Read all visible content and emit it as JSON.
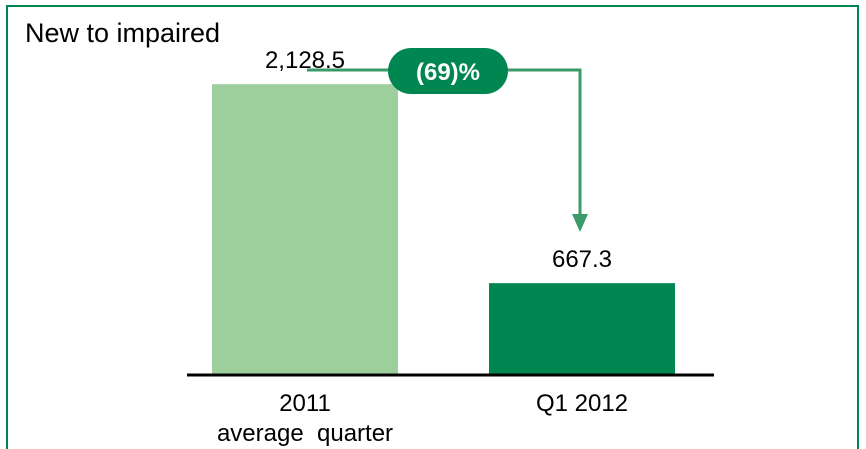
{
  "chart_data": {
    "type": "bar",
    "title": "New to impaired",
    "categories": [
      "2011\naverage  quarter",
      "Q1 2012"
    ],
    "values": [
      2128.5,
      667.3
    ],
    "value_labels": [
      "2,128.5",
      "667.3"
    ],
    "bar_colors": [
      "#9ccf9c",
      "#008751"
    ],
    "change_annotation": "(69)%",
    "annotation_color": "#008751",
    "connector_color": "#3a9a6a",
    "frame_color": "#008751",
    "grid": false,
    "legend": "none",
    "ylim": [
      0,
      2600
    ]
  }
}
